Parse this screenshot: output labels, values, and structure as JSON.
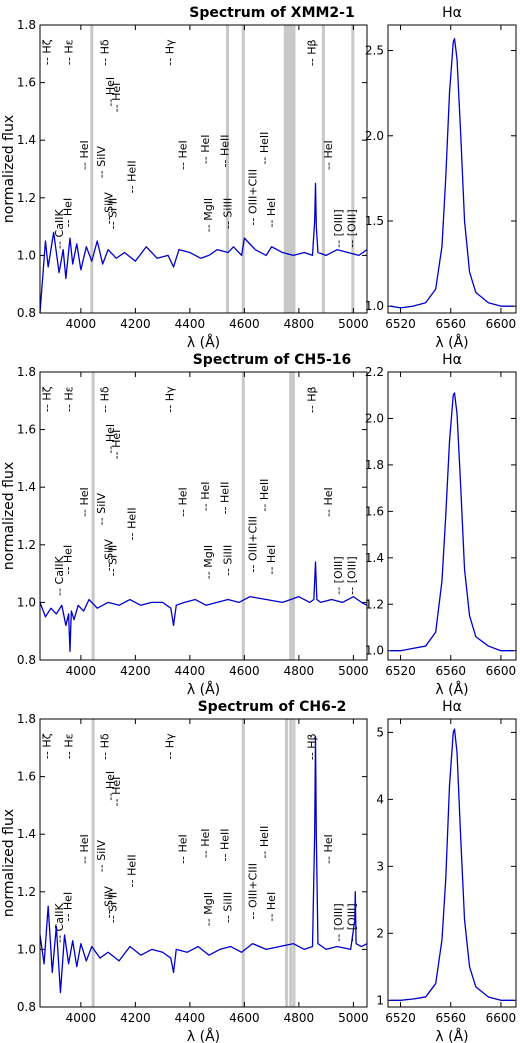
{
  "figure": {
    "ylabel": "normalized flux",
    "xlabel": "λ (Å)",
    "inset_title": "Hα",
    "line_color": "#0000cc",
    "band_color": "#c8c8c8",
    "xticks": [
      4000,
      4200,
      4400,
      4600,
      4800,
      5000
    ],
    "yticks": [
      0.8,
      1.0,
      1.2,
      1.4,
      1.6,
      1.8
    ],
    "xlim": [
      3850,
      5050
    ],
    "ylim": [
      0.8,
      1.8
    ],
    "line_labels": [
      {
        "text": "-- Hζ",
        "x": 3889,
        "y": 1.75
      },
      {
        "text": "-- Hε",
        "x": 3970,
        "y": 1.75
      },
      {
        "text": "-- Hδ",
        "x": 4102,
        "y": 1.75
      },
      {
        "text": "-- Hγ",
        "x": 4340,
        "y": 1.75
      },
      {
        "text": "-- Hβ",
        "x": 4861,
        "y": 1.75
      },
      {
        "text": "-- HeI",
        "x": 4121,
        "y": 1.62
      },
      {
        "text": "-- HeI",
        "x": 4144,
        "y": 1.6
      },
      {
        "text": "-- HeI",
        "x": 4026,
        "y": 1.4
      },
      {
        "text": "-- SiIV",
        "x": 4089,
        "y": 1.38
      },
      {
        "text": "-- HeII",
        "x": 4200,
        "y": 1.33
      },
      {
        "text": "-- HeI",
        "x": 4388,
        "y": 1.4
      },
      {
        "text": "-- HeI",
        "x": 4471,
        "y": 1.42
      },
      {
        "text": "-- HeII",
        "x": 4542,
        "y": 1.42
      },
      {
        "text": "-- HeII",
        "x": 4686,
        "y": 1.43
      },
      {
        "text": "-- HeI",
        "x": 4922,
        "y": 1.4
      },
      {
        "text": "-- OIII+CIII",
        "x": 4645,
        "y": 1.3
      },
      {
        "text": "-- HeI",
        "x": 4713,
        "y": 1.2
      },
      {
        "text": "-- HeI",
        "x": 3965,
        "y": 1.2
      },
      {
        "text": "-- CaIIK",
        "x": 3934,
        "y": 1.16
      },
      {
        "text": "-- SiIV",
        "x": 4116,
        "y": 1.22
      },
      {
        "text": "-- Si II",
        "x": 4130,
        "y": 1.2
      },
      {
        "text": "-- MgII",
        "x": 4481,
        "y": 1.2
      },
      {
        "text": "-- SiIII",
        "x": 4553,
        "y": 1.2
      },
      {
        "text": "-- [OIII]",
        "x": 4959,
        "y": 1.16
      },
      {
        "text": "-- [OIII]",
        "x": 5007,
        "y": 1.16
      }
    ]
  },
  "chart_data": [
    {
      "type": "line",
      "title": "Spectrum of XMM2-1",
      "xlabel": "λ (Å)",
      "ylabel": "normalized flux",
      "xlim": [
        3850,
        5050
      ],
      "ylim": [
        0.8,
        1.8
      ],
      "grid": false,
      "shaded_wavelengths": [
        4040,
        4538,
        4596,
        4750,
        4758,
        4768,
        4775,
        4782,
        4890,
        4998
      ],
      "x": [
        3850,
        3870,
        3880,
        3900,
        3920,
        3935,
        3945,
        3960,
        3970,
        3985,
        4000,
        4020,
        4040,
        4060,
        4080,
        4100,
        4130,
        4160,
        4200,
        4240,
        4280,
        4320,
        4340,
        4360,
        4400,
        4440,
        4470,
        4500,
        4540,
        4560,
        4590,
        4600,
        4640,
        4680,
        4700,
        4740,
        4780,
        4820,
        4850,
        4858,
        4861,
        4864,
        4870,
        4900,
        4940,
        4980,
        5020,
        5050
      ],
      "y": [
        0.8,
        1.05,
        0.96,
        1.08,
        0.94,
        1.02,
        0.92,
        1.06,
        0.97,
        1.04,
        0.95,
        1.03,
        0.98,
        1.05,
        0.97,
        1.02,
        0.99,
        1.01,
        0.98,
        1.03,
        0.99,
        1.0,
        0.96,
        1.02,
        1.01,
        0.99,
        1.0,
        1.02,
        1.01,
        1.03,
        1.0,
        1.06,
        1.02,
        1.0,
        1.03,
        1.01,
        1.0,
        1.01,
        1.0,
        1.12,
        1.25,
        1.1,
        1.01,
        1.0,
        1.02,
        1.01,
        1.0,
        1.02
      ]
    },
    {
      "type": "line",
      "title": "Hα",
      "xlabel": "λ (Å)",
      "xlim": [
        6510,
        6612
      ],
      "ylim": [
        0.96,
        2.65
      ],
      "yticks": [
        1.0,
        1.5,
        2.0,
        2.5
      ],
      "xticks": [
        6520,
        6560,
        6600
      ],
      "x": [
        6512,
        6520,
        6530,
        6540,
        6548,
        6553,
        6556,
        6559,
        6562,
        6563,
        6565,
        6568,
        6571,
        6575,
        6580,
        6590,
        6600,
        6610
      ],
      "y": [
        1.0,
        0.99,
        1.0,
        1.02,
        1.1,
        1.35,
        1.75,
        2.25,
        2.55,
        2.57,
        2.45,
        2.0,
        1.5,
        1.2,
        1.08,
        1.02,
        1.0,
        1.0
      ]
    },
    {
      "type": "line",
      "title": "Spectrum of CH5-16",
      "xlabel": "λ (Å)",
      "ylabel": "normalized flux",
      "xlim": [
        3850,
        5050
      ],
      "ylim": [
        0.8,
        1.8
      ],
      "grid": false,
      "shaded_wavelengths": [
        4045,
        4596,
        4770,
        4780
      ],
      "x": [
        3850,
        3870,
        3890,
        3910,
        3930,
        3945,
        3955,
        3960,
        3965,
        3975,
        3990,
        4010,
        4030,
        4060,
        4100,
        4140,
        4180,
        4220,
        4260,
        4300,
        4330,
        4340,
        4350,
        4380,
        4420,
        4460,
        4500,
        4540,
        4580,
        4620,
        4680,
        4740,
        4800,
        4840,
        4855,
        4861,
        4866,
        4880,
        4920,
        4960,
        5000,
        5030,
        5050
      ],
      "y": [
        1.0,
        0.95,
        0.98,
        0.96,
        0.99,
        0.92,
        0.96,
        0.83,
        0.97,
        0.94,
        0.99,
        0.97,
        1.01,
        0.98,
        1.0,
        0.99,
        1.01,
        0.99,
        1.0,
        1.0,
        0.98,
        0.92,
        0.99,
        1.0,
        1.01,
        0.99,
        1.0,
        1.01,
        1.0,
        1.02,
        1.01,
        1.0,
        1.02,
        1.0,
        1.01,
        1.14,
        1.01,
        1.0,
        1.01,
        1.0,
        1.02,
        1.0,
        0.99
      ]
    },
    {
      "type": "line",
      "title": "Hα",
      "xlabel": "λ (Å)",
      "xlim": [
        6510,
        6612
      ],
      "ylim": [
        0.96,
        2.2
      ],
      "yticks": [
        1.0,
        1.2,
        1.4,
        1.6,
        1.8,
        2.0,
        2.2
      ],
      "xticks": [
        6520,
        6560,
        6600
      ],
      "x": [
        6512,
        6520,
        6530,
        6540,
        6548,
        6553,
        6556,
        6559,
        6562,
        6563,
        6565,
        6568,
        6571,
        6575,
        6580,
        6590,
        6600,
        6610
      ],
      "y": [
        1.0,
        1.0,
        1.01,
        1.02,
        1.08,
        1.3,
        1.58,
        1.9,
        2.1,
        2.11,
        2.02,
        1.7,
        1.35,
        1.15,
        1.06,
        1.02,
        1.0,
        1.0
      ]
    },
    {
      "type": "line",
      "title": "Spectrum of CH6-2",
      "xlabel": "λ (Å)",
      "ylabel": "normalized flux",
      "xlim": [
        3850,
        5050
      ],
      "ylim": [
        0.8,
        1.8
      ],
      "grid": false,
      "shaded_wavelengths": [
        4045,
        4596,
        4755,
        4770,
        4782
      ],
      "x": [
        3850,
        3865,
        3880,
        3895,
        3910,
        3925,
        3940,
        3955,
        3970,
        3985,
        4000,
        4020,
        4040,
        4070,
        4100,
        4140,
        4180,
        4220,
        4260,
        4300,
        4330,
        4340,
        4350,
        4390,
        4430,
        4470,
        4510,
        4550,
        4590,
        4630,
        4680,
        4730,
        4780,
        4820,
        4850,
        4858,
        4861,
        4864,
        4870,
        4900,
        4940,
        4990,
        5005,
        5007,
        5010,
        5030,
        5050
      ],
      "y": [
        1.05,
        0.95,
        1.15,
        0.92,
        1.08,
        0.85,
        1.05,
        0.95,
        1.03,
        0.94,
        1.02,
        0.96,
        1.01,
        0.97,
        0.99,
        0.96,
        1.01,
        0.98,
        1.0,
        0.99,
        0.97,
        0.92,
        1.0,
        0.99,
        1.01,
        0.98,
        1.0,
        1.01,
        0.99,
        1.02,
        1.0,
        1.01,
        1.02,
        1.0,
        1.01,
        1.4,
        1.74,
        1.4,
        1.02,
        1.0,
        1.01,
        1.0,
        1.1,
        1.2,
        1.02,
        1.01,
        1.02
      ]
    },
    {
      "type": "line",
      "title": "Hα",
      "xlabel": "λ (Å)",
      "xlim": [
        6510,
        6612
      ],
      "ylim": [
        0.9,
        5.2
      ],
      "yticks": [
        1,
        2,
        3,
        4,
        5
      ],
      "xticks": [
        6520,
        6560,
        6600
      ],
      "x": [
        6512,
        6520,
        6530,
        6540,
        6548,
        6553,
        6556,
        6559,
        6562,
        6563,
        6565,
        6568,
        6571,
        6575,
        6580,
        6590,
        6600,
        6610
      ],
      "y": [
        1.0,
        1.0,
        1.02,
        1.05,
        1.25,
        1.9,
        2.8,
        4.2,
        5.0,
        5.05,
        4.7,
        3.4,
        2.2,
        1.5,
        1.2,
        1.05,
        1.0,
        1.0
      ]
    }
  ]
}
